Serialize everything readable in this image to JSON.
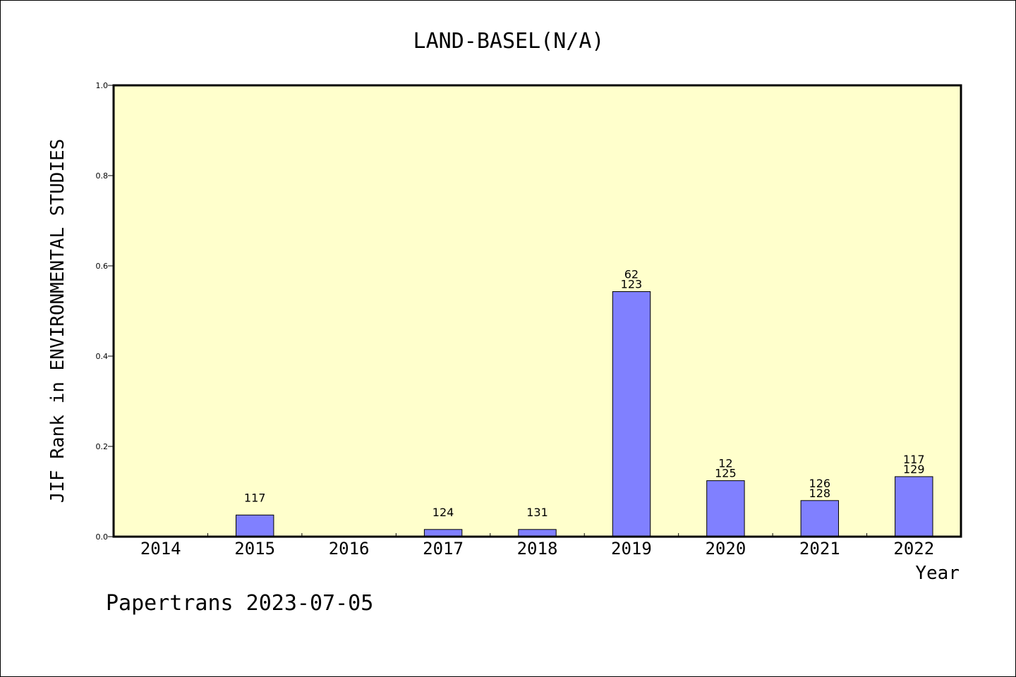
{
  "chart_data": {
    "type": "bar",
    "title": "LAND-BASEL(N/A)",
    "xlabel": "Year",
    "ylabel": "JIF Rank in ENVIRONMENTAL STUDIES",
    "categories": [
      "2014",
      "2015",
      "2016",
      "2017",
      "2018",
      "2019",
      "2020",
      "2021",
      "2022"
    ],
    "values": [
      null,
      0.048,
      null,
      0.016,
      0.016,
      0.543,
      0.124,
      0.08,
      0.133
    ],
    "labels_top": [
      "",
      "117",
      "",
      "124",
      "131",
      "62",
      "12",
      "126",
      "117"
    ],
    "labels_bottom": [
      "",
      "",
      "",
      "",
      "",
      "123",
      "125",
      "128",
      "129"
    ],
    "ylim": [
      0,
      1.0
    ],
    "yticks": [
      "0.0",
      "0.2",
      "0.4",
      "0.6",
      "0.8",
      "1.0"
    ],
    "ytick_values": [
      0,
      0.2,
      0.4,
      0.6,
      0.8,
      1.0
    ],
    "grid": false,
    "plot_background": "#ffffcc",
    "bar_color": "#8080ff"
  },
  "footer": {
    "text": "Papertrans 2023-07-05"
  }
}
